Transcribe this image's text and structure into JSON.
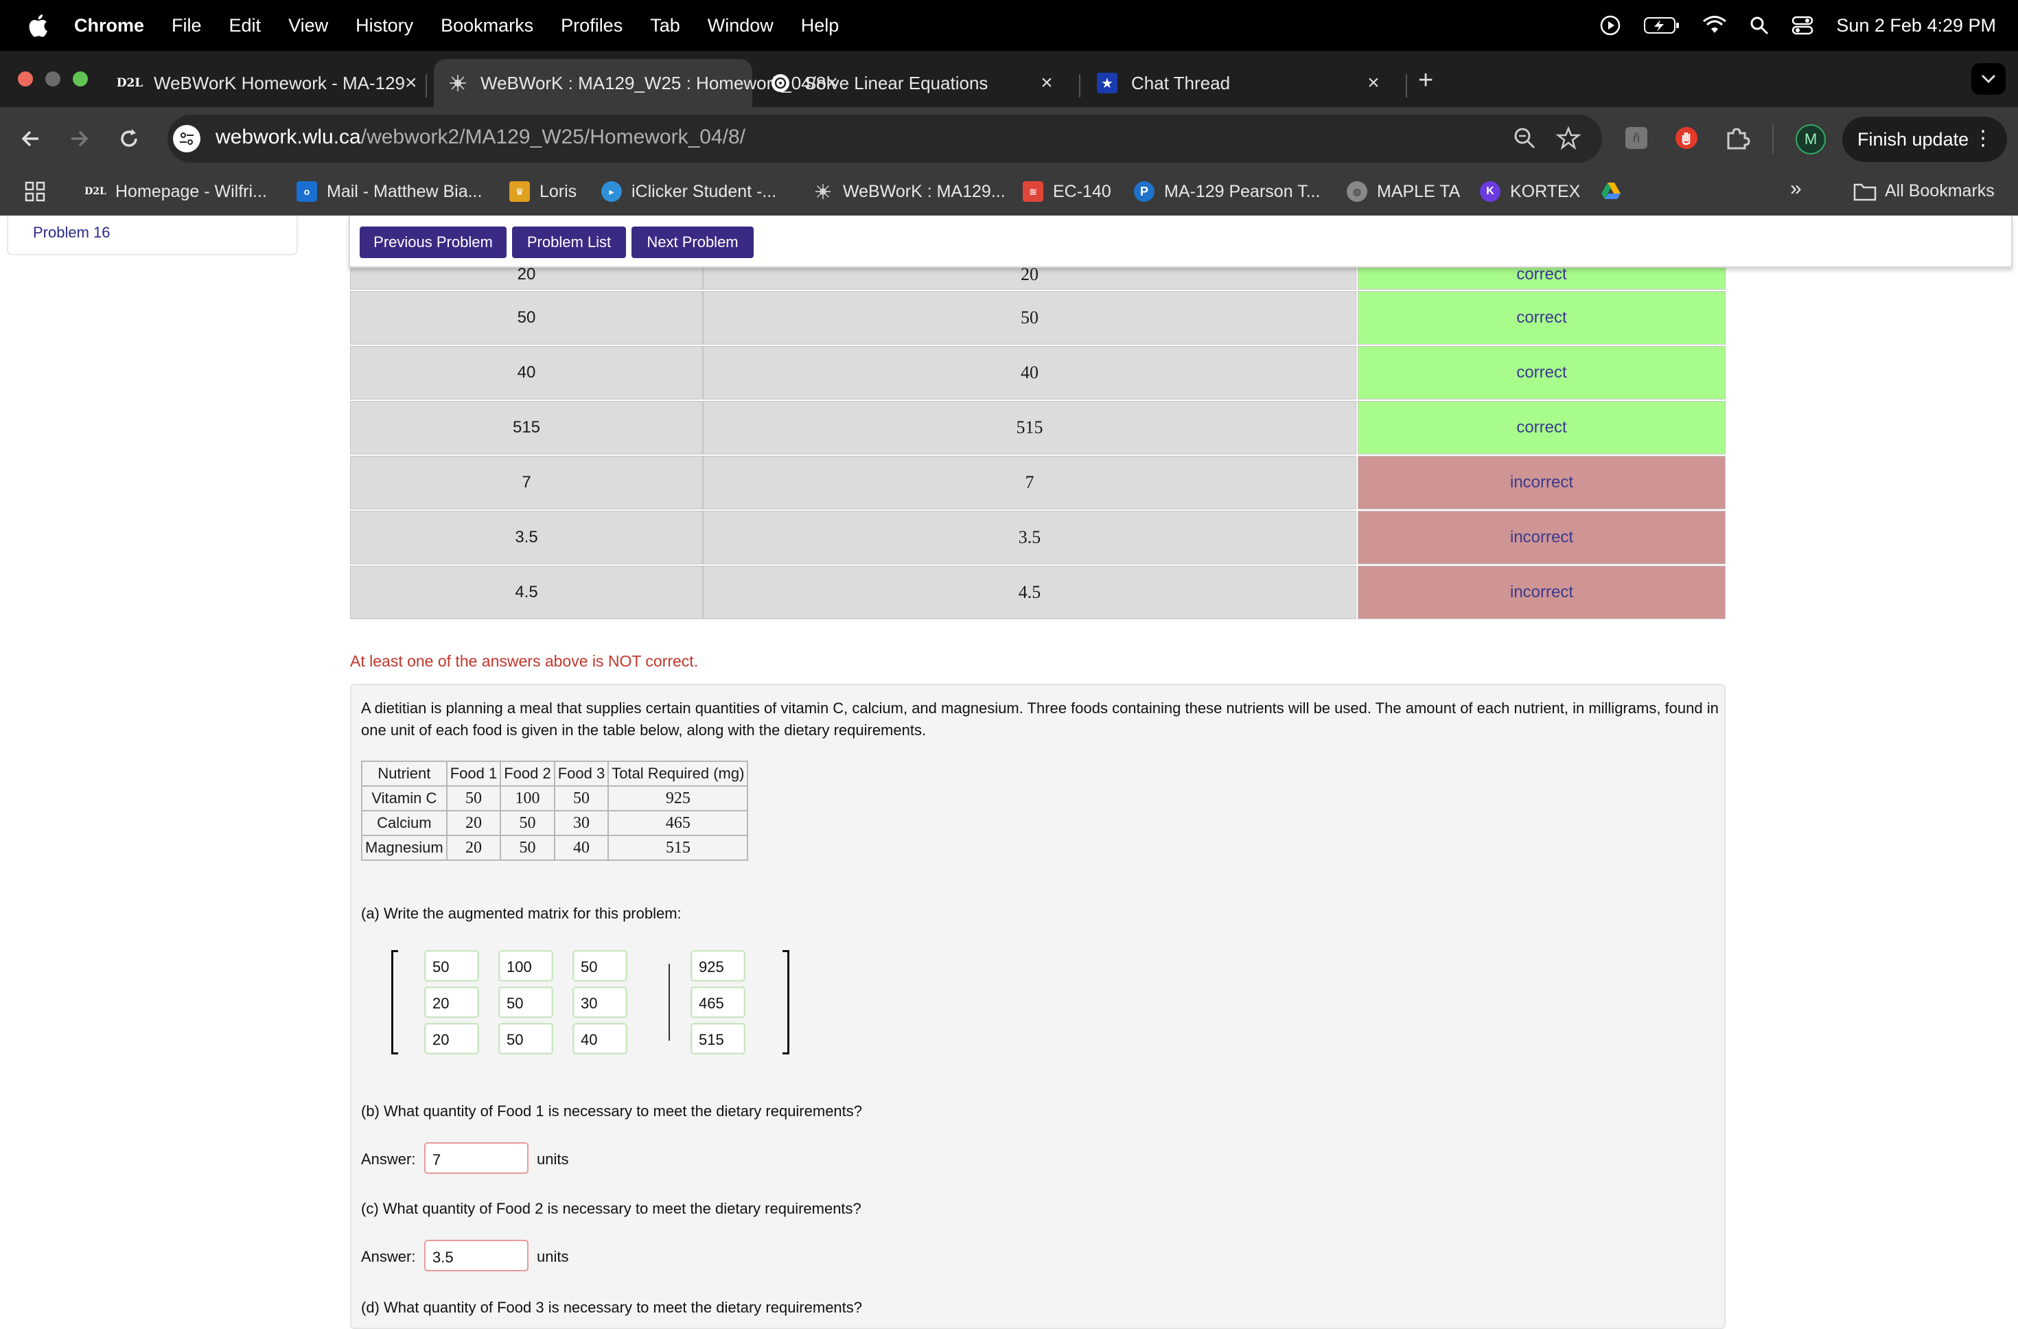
{
  "menubar": {
    "app": "Chrome",
    "items": [
      "File",
      "Edit",
      "View",
      "History",
      "Bookmarks",
      "Profiles",
      "Tab",
      "Window",
      "Help"
    ],
    "clock": "Sun 2 Feb  4:29 PM"
  },
  "tabs": [
    {
      "favicon": "D2L",
      "title": "WeBWorK Homework - MA-129"
    },
    {
      "favicon": "webwork-icon",
      "title": "WeBWorK : MA129_W25 : Homework_04/8"
    },
    {
      "favicon": "chatgpt-icon",
      "title": "Solve Linear Equations"
    },
    {
      "favicon": "star-icon",
      "title": "Chat Thread"
    }
  ],
  "toolbar": {
    "url_domain": "webwork.wlu.ca",
    "url_path": "/webwork2/MA129_W25/Homework_04/8/",
    "avatar_letter": "M",
    "finish_update": "Finish update"
  },
  "bookmarks": [
    {
      "icon": "D2L",
      "label": "Homepage - Wilfri..."
    },
    {
      "icon": "outlook-icon",
      "label": "Mail - Matthew Bia..."
    },
    {
      "icon": "loris-icon",
      "label": "Loris"
    },
    {
      "icon": "iclicker-icon",
      "label": "iClicker Student -..."
    },
    {
      "icon": "webwork-icon",
      "label": "WeBWorK : MA129..."
    },
    {
      "icon": "ec-icon",
      "label": "EC-140"
    },
    {
      "icon": "pearson-icon",
      "label": "MA-129 Pearson T..."
    },
    {
      "icon": "globe-icon",
      "label": "MAPLE TA"
    },
    {
      "icon": "kortex-icon",
      "label": "KORTEX"
    },
    {
      "icon": "drive-icon",
      "label": ""
    }
  ],
  "all_bookmarks": "All Bookmarks",
  "sidebar": {
    "current_problem": "Problem 16"
  },
  "problem_nav": {
    "previous": "Previous Problem",
    "list": "Problem List",
    "next": "Next Problem"
  },
  "results": [
    {
      "entered": "20",
      "preview": "20",
      "status": "correct"
    },
    {
      "entered": "50",
      "preview": "50",
      "status": "correct"
    },
    {
      "entered": "40",
      "preview": "40",
      "status": "correct"
    },
    {
      "entered": "515",
      "preview": "515",
      "status": "correct"
    },
    {
      "entered": "7",
      "preview": "7",
      "status": "incorrect"
    },
    {
      "entered": "3.5",
      "preview": "3.5",
      "status": "incorrect"
    },
    {
      "entered": "4.5",
      "preview": "4.5",
      "status": "incorrect"
    }
  ],
  "warning": "At least one of the answers above is NOT correct.",
  "problem": {
    "statement": "A dietitian is planning a meal that supplies certain quantities of vitamin C, calcium, and magnesium. Three foods containing these nutrients will be used. The amount of each nutrient, in milligrams, found in one unit of each food is given in the table below, along with the dietary requirements.",
    "table": {
      "headers": [
        "Nutrient",
        "Food 1",
        "Food 2",
        "Food 3",
        "Total Required (mg)"
      ],
      "rows": [
        [
          "Vitamin C",
          "50",
          "100",
          "50",
          "925"
        ],
        [
          "Calcium",
          "20",
          "50",
          "30",
          "465"
        ],
        [
          "Magnesium",
          "20",
          "50",
          "40",
          "515"
        ]
      ]
    },
    "part_a": "(a) Write the augmented matrix for this problem:",
    "matrix": [
      [
        "50",
        "100",
        "50",
        "925"
      ],
      [
        "20",
        "50",
        "30",
        "465"
      ],
      [
        "20",
        "50",
        "40",
        "515"
      ]
    ],
    "part_b": "(b) What quantity of Food 1 is necessary to meet the dietary requirements?",
    "part_c": "(c) What quantity of Food 2 is necessary to meet the dietary requirements?",
    "part_d": "(d) What quantity of Food 3 is necessary to meet the dietary requirements?",
    "answer_label": "Answer:",
    "units": "units",
    "answer_b": "7",
    "answer_c": "3.5"
  }
}
